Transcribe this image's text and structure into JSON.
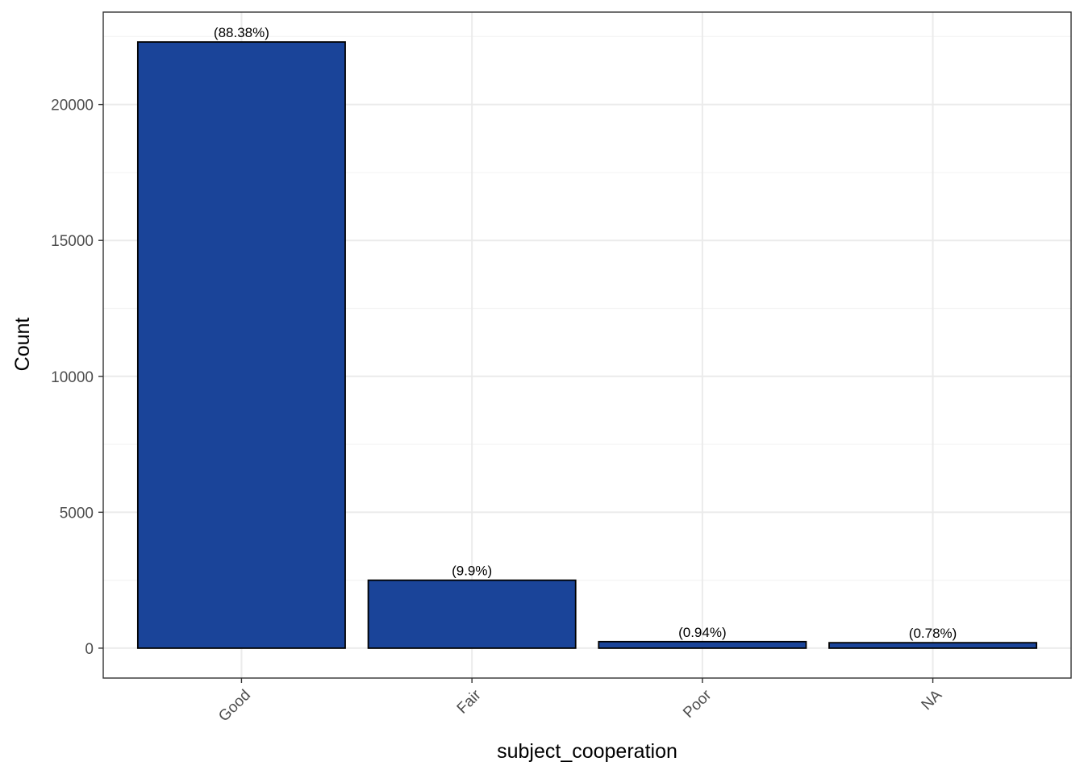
{
  "chart_data": {
    "type": "bar",
    "categories": [
      "Good",
      "Fair",
      "Poor",
      "NA"
    ],
    "values": [
      22300,
      2500,
      240,
      200
    ],
    "data_labels": [
      "(88.38%)",
      "(9.9%)",
      "(0.94%)",
      "(0.78%)"
    ],
    "title": "",
    "xlabel": "subject_cooperation",
    "ylabel": "Count",
    "ylim": [
      -1100,
      23400
    ],
    "yticks": [
      0,
      5000,
      10000,
      15000,
      20000
    ],
    "ytick_labels": [
      "0",
      "5000",
      "10000",
      "15000",
      "20000"
    ],
    "grid": true,
    "legend": "none",
    "x_tick_rotation_deg": 45
  },
  "colors": {
    "bar_fill": "#1a4499",
    "bar_outline": "#000000",
    "grid_major": "#ebebeb",
    "grid_minor": "#f4f4f4",
    "panel_border": "#333333",
    "tick_text": "#4d4d4d"
  }
}
